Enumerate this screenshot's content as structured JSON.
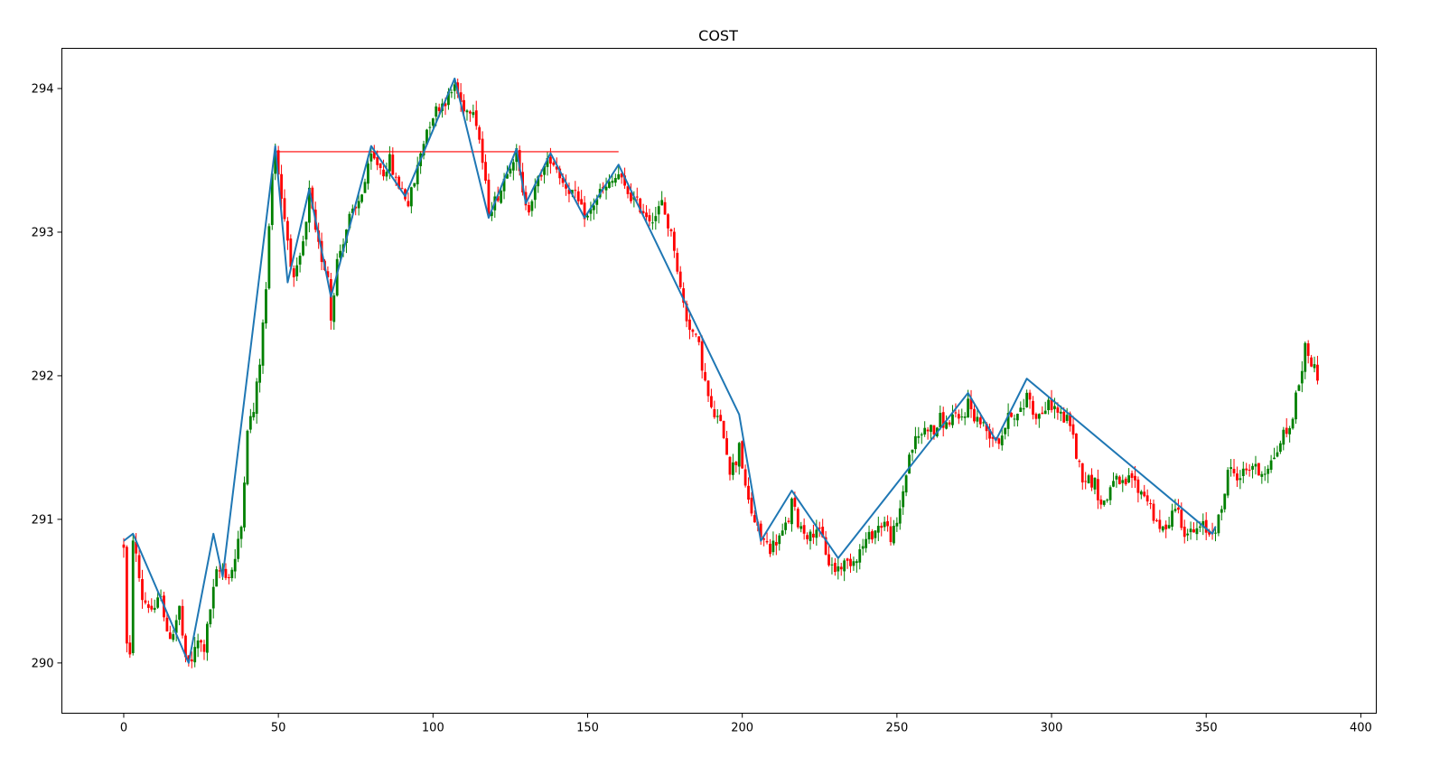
{
  "chart_data": {
    "type": "candlestick",
    "title": "COST",
    "xlabel": "",
    "ylabel": "",
    "xlim": [
      -20,
      405
    ],
    "ylim": [
      289.65,
      294.28
    ],
    "xticks": [
      0,
      50,
      100,
      150,
      200,
      250,
      300,
      350,
      400
    ],
    "yticks": [
      290,
      291,
      292,
      293,
      294
    ],
    "grid": false,
    "colors": {
      "up": "#008000",
      "down": "#ff0000",
      "zigzag": "#1f77b4",
      "level": "#ff0000",
      "axes": "#000000"
    },
    "price_anchors": [
      [
        0,
        290.82
      ],
      [
        1,
        290.12
      ],
      [
        2,
        290.03
      ],
      [
        3,
        290.88
      ],
      [
        6,
        290.45
      ],
      [
        8,
        290.4
      ],
      [
        10,
        290.35
      ],
      [
        12,
        290.5
      ],
      [
        14,
        290.18
      ],
      [
        16,
        290.22
      ],
      [
        18,
        290.38
      ],
      [
        20,
        290.0
      ],
      [
        22,
        290.02
      ],
      [
        24,
        290.15
      ],
      [
        26,
        290.1
      ],
      [
        28,
        290.38
      ],
      [
        30,
        290.62
      ],
      [
        32,
        290.65
      ],
      [
        34,
        290.6
      ],
      [
        36,
        290.72
      ],
      [
        38,
        290.95
      ],
      [
        40,
        291.65
      ],
      [
        42,
        291.75
      ],
      [
        44,
        292.1
      ],
      [
        46,
        292.6
      ],
      [
        48,
        293.45
      ],
      [
        49,
        293.58
      ],
      [
        51,
        293.25
      ],
      [
        53,
        292.95
      ],
      [
        55,
        292.65
      ],
      [
        57,
        292.8
      ],
      [
        59,
        293.05
      ],
      [
        60,
        293.28
      ],
      [
        62,
        292.98
      ],
      [
        64,
        292.82
      ],
      [
        66,
        292.7
      ],
      [
        67,
        292.4
      ],
      [
        69,
        292.8
      ],
      [
        71,
        292.95
      ],
      [
        73,
        293.1
      ],
      [
        75,
        293.15
      ],
      [
        78,
        293.35
      ],
      [
        80,
        293.52
      ],
      [
        82,
        293.48
      ],
      [
        84,
        293.42
      ],
      [
        86,
        293.5
      ],
      [
        88,
        293.35
      ],
      [
        90,
        293.3
      ],
      [
        92,
        293.2
      ],
      [
        94,
        293.35
      ],
      [
        96,
        293.55
      ],
      [
        98,
        293.72
      ],
      [
        100,
        293.82
      ],
      [
        102,
        293.88
      ],
      [
        104,
        293.92
      ],
      [
        106,
        293.97
      ],
      [
        107,
        294.03
      ],
      [
        109,
        293.9
      ],
      [
        111,
        293.85
      ],
      [
        113,
        293.88
      ],
      [
        115,
        293.65
      ],
      [
        117,
        293.32
      ],
      [
        118,
        293.15
      ],
      [
        120,
        293.22
      ],
      [
        122,
        293.3
      ],
      [
        124,
        293.45
      ],
      [
        126,
        293.52
      ],
      [
        127,
        293.55
      ],
      [
        129,
        293.25
      ],
      [
        131,
        293.18
      ],
      [
        133,
        293.3
      ],
      [
        135,
        293.42
      ],
      [
        137,
        293.48
      ],
      [
        138,
        293.52
      ],
      [
        140,
        293.45
      ],
      [
        142,
        293.35
      ],
      [
        144,
        293.3
      ],
      [
        146,
        293.25
      ],
      [
        148,
        293.15
      ],
      [
        150,
        293.1
      ],
      [
        152,
        293.2
      ],
      [
        154,
        293.28
      ],
      [
        156,
        293.3
      ],
      [
        158,
        293.35
      ],
      [
        160,
        293.4
      ],
      [
        162,
        293.3
      ],
      [
        164,
        293.25
      ],
      [
        166,
        293.2
      ],
      [
        168,
        293.15
      ],
      [
        170,
        293.1
      ],
      [
        172,
        293.12
      ],
      [
        174,
        293.2
      ],
      [
        176,
        293.05
      ],
      [
        178,
        292.9
      ],
      [
        180,
        292.6
      ],
      [
        182,
        292.4
      ],
      [
        184,
        292.3
      ],
      [
        186,
        292.2
      ],
      [
        188,
        291.95
      ],
      [
        190,
        291.75
      ],
      [
        192,
        291.7
      ],
      [
        194,
        291.6
      ],
      [
        196,
        291.35
      ],
      [
        198,
        291.4
      ],
      [
        199,
        291.55
      ],
      [
        201,
        291.2
      ],
      [
        203,
        291.05
      ],
      [
        205,
        290.92
      ],
      [
        207,
        290.85
      ],
      [
        209,
        290.8
      ],
      [
        211,
        290.85
      ],
      [
        213,
        290.9
      ],
      [
        215,
        291.0
      ],
      [
        216,
        291.12
      ],
      [
        218,
        290.98
      ],
      [
        220,
        290.92
      ],
      [
        222,
        290.88
      ],
      [
        224,
        290.95
      ],
      [
        226,
        290.85
      ],
      [
        228,
        290.7
      ],
      [
        230,
        290.65
      ],
      [
        232,
        290.68
      ],
      [
        234,
        290.7
      ],
      [
        236,
        290.72
      ],
      [
        238,
        290.78
      ],
      [
        240,
        290.85
      ],
      [
        242,
        290.9
      ],
      [
        244,
        290.95
      ],
      [
        246,
        290.98
      ],
      [
        248,
        290.88
      ],
      [
        250,
        290.95
      ],
      [
        252,
        291.2
      ],
      [
        254,
        291.45
      ],
      [
        256,
        291.55
      ],
      [
        258,
        291.6
      ],
      [
        260,
        291.65
      ],
      [
        262,
        291.6
      ],
      [
        264,
        291.7
      ],
      [
        266,
        291.65
      ],
      [
        268,
        291.72
      ],
      [
        270,
        291.68
      ],
      [
        272,
        291.75
      ],
      [
        273,
        291.82
      ],
      [
        275,
        291.72
      ],
      [
        277,
        291.68
      ],
      [
        279,
        291.62
      ],
      [
        281,
        291.58
      ],
      [
        283,
        291.55
      ],
      [
        285,
        291.65
      ],
      [
        287,
        291.75
      ],
      [
        289,
        291.72
      ],
      [
        291,
        291.78
      ],
      [
        292,
        291.9
      ],
      [
        294,
        291.75
      ],
      [
        296,
        291.72
      ],
      [
        298,
        291.78
      ],
      [
        300,
        291.8
      ],
      [
        302,
        291.75
      ],
      [
        304,
        291.7
      ],
      [
        306,
        291.68
      ],
      [
        308,
        291.45
      ],
      [
        310,
        291.3
      ],
      [
        312,
        291.28
      ],
      [
        314,
        291.25
      ],
      [
        316,
        291.1
      ],
      [
        318,
        291.15
      ],
      [
        320,
        291.3
      ],
      [
        322,
        291.22
      ],
      [
        324,
        291.25
      ],
      [
        326,
        291.3
      ],
      [
        328,
        291.2
      ],
      [
        330,
        291.18
      ],
      [
        332,
        291.1
      ],
      [
        334,
        290.95
      ],
      [
        336,
        290.92
      ],
      [
        338,
        291.0
      ],
      [
        340,
        291.1
      ],
      [
        341,
        291.05
      ],
      [
        343,
        290.92
      ],
      [
        345,
        290.9
      ],
      [
        347,
        290.92
      ],
      [
        349,
        290.95
      ],
      [
        351,
        290.9
      ],
      [
        353,
        290.95
      ],
      [
        355,
        291.05
      ],
      [
        357,
        291.35
      ],
      [
        359,
        291.32
      ],
      [
        361,
        291.3
      ],
      [
        363,
        291.35
      ],
      [
        365,
        291.38
      ],
      [
        367,
        291.32
      ],
      [
        369,
        291.35
      ],
      [
        371,
        291.4
      ],
      [
        373,
        291.48
      ],
      [
        375,
        291.6
      ],
      [
        377,
        291.62
      ],
      [
        379,
        291.85
      ],
      [
        381,
        292.05
      ],
      [
        382,
        292.2
      ],
      [
        384,
        292.1
      ],
      [
        386,
        292.0
      ]
    ],
    "zigzag": {
      "x": [
        0,
        3,
        21,
        29,
        32,
        49,
        53,
        60,
        67,
        80,
        91,
        107,
        118,
        127,
        130,
        138,
        149,
        160,
        199,
        206,
        216,
        231,
        273,
        282,
        292,
        352,
        353
      ],
      "y": [
        290.85,
        290.9,
        290.0,
        290.9,
        290.6,
        293.6,
        292.65,
        293.3,
        292.55,
        293.6,
        293.25,
        294.07,
        293.1,
        293.58,
        293.2,
        293.55,
        293.1,
        293.47,
        291.73,
        290.85,
        291.2,
        290.73,
        291.88,
        291.55,
        291.98,
        290.9,
        290.95
      ]
    },
    "resistance": {
      "x": [
        49,
        160
      ],
      "y": [
        293.56,
        293.56
      ]
    }
  }
}
